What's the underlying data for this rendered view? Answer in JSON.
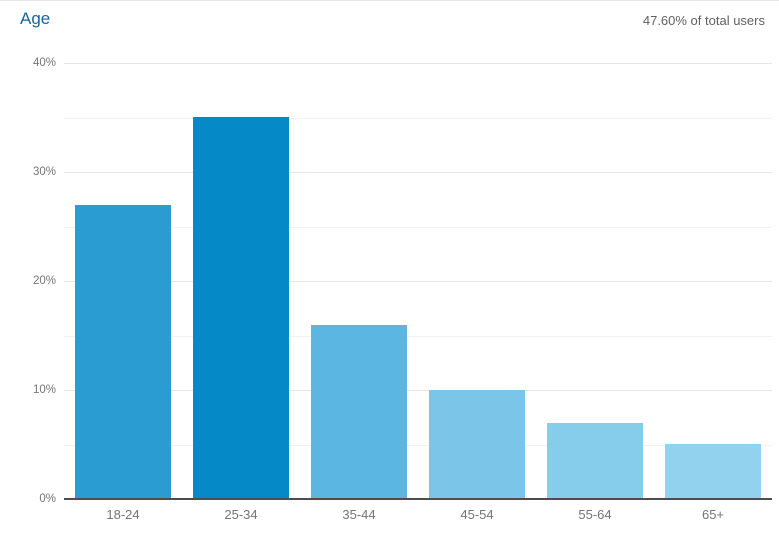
{
  "header": {
    "title": "Age",
    "subtitle": "47.60% of total users"
  },
  "colors": {
    "title_link": "#15679b",
    "subtitle_text": "#616161",
    "axis_label": "#757575",
    "axis_line": "#4d4d4d",
    "gridline_major": "#e6e6e6",
    "gridline_minor": "#f2f2f2",
    "background": "#ffffff"
  },
  "chart_data": {
    "type": "bar",
    "title": "Age",
    "xlabel": "",
    "ylabel": "",
    "categories": [
      "18-24",
      "25-34",
      "35-44",
      "45-54",
      "55-64",
      "65+"
    ],
    "values": [
      27,
      35,
      16,
      10,
      7,
      5
    ],
    "unit": "%",
    "ylim": [
      0,
      40
    ],
    "ytick_step_major": 10,
    "ytick_step_minor": 5,
    "ytick_labels": [
      "0%",
      "10%",
      "20%",
      "30%",
      "40%"
    ],
    "grid": true,
    "legend": false,
    "bar_colors": [
      "#2b9cd1",
      "#0689c7",
      "#5cb6e2",
      "#7bc5e8",
      "#86cdeb",
      "#92d2ee"
    ]
  }
}
